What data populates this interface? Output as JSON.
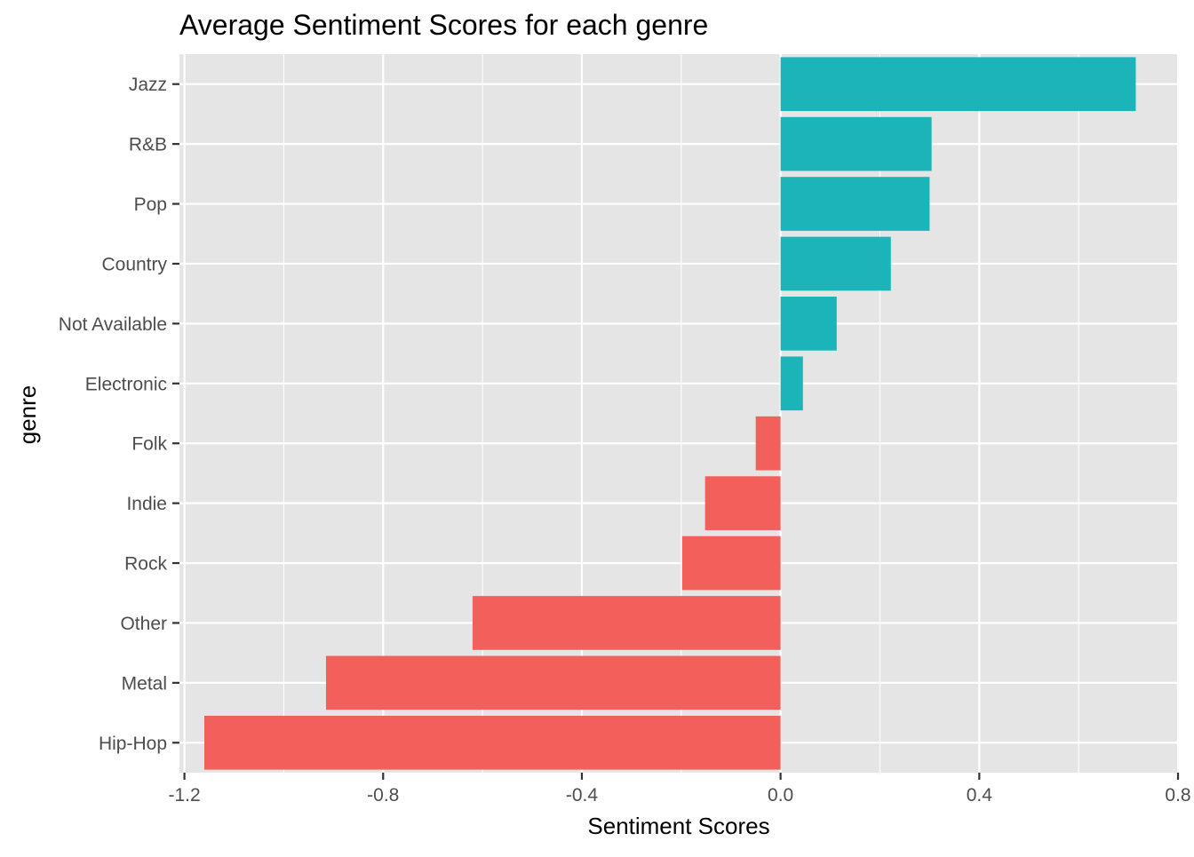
{
  "chart_data": {
    "type": "bar",
    "orientation": "horizontal",
    "title": "Average Sentiment Scores for each genre",
    "xlabel": "Sentiment Scores",
    "ylabel": "genre",
    "categories": [
      "Hip-Hop",
      "Metal",
      "Other",
      "Rock",
      "Indie",
      "Folk",
      "Electronic",
      "Not Available",
      "Country",
      "Pop",
      "R&B",
      "Jazz"
    ],
    "values": [
      -1.16,
      -0.915,
      -0.62,
      -0.198,
      -0.152,
      -0.05,
      0.045,
      0.113,
      0.222,
      0.3,
      0.304,
      0.715
    ],
    "xlim": [
      -1.21,
      0.8
    ],
    "xticks": [
      -1.2,
      -0.8,
      -0.4,
      0.0,
      0.4,
      0.8
    ],
    "xtick_labels": [
      "-1.2",
      "-0.8",
      "-0.4",
      "0.0",
      "0.4",
      "0.8"
    ],
    "grid": true,
    "legend": "none",
    "colors": {
      "negative": "#F3605B",
      "positive": "#1BB4B9",
      "panel": "#E5E5E5",
      "grid": "#FFFFFF"
    }
  }
}
